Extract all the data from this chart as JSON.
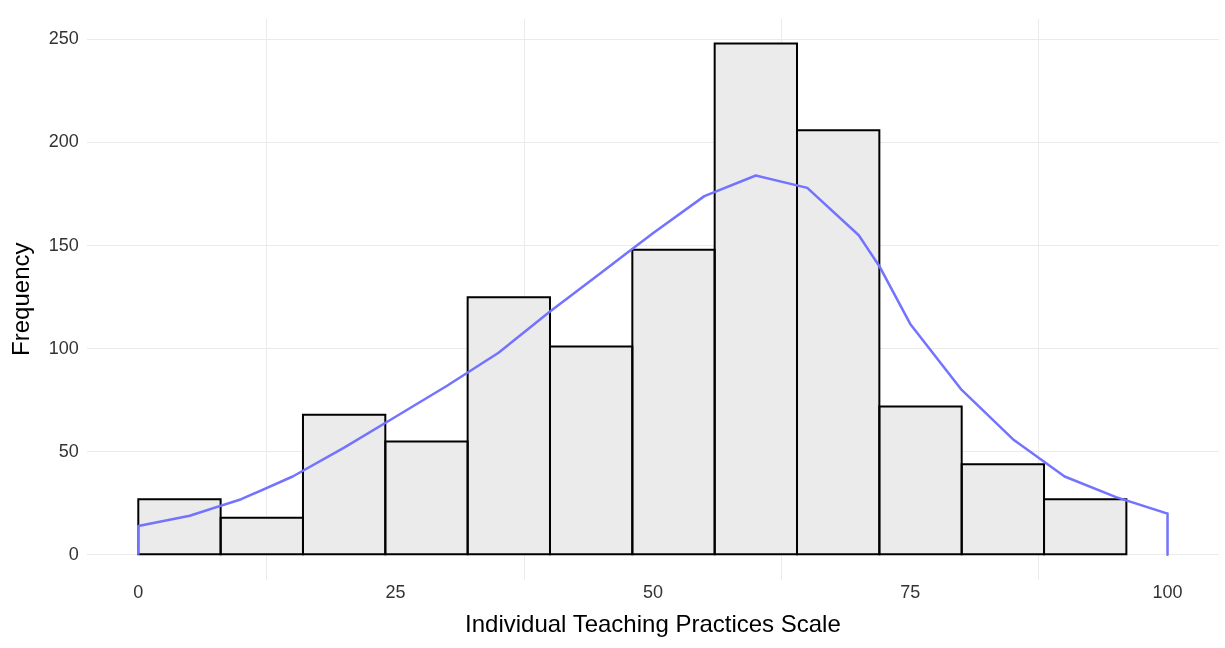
{
  "chart_data": {
    "type": "histogram",
    "xlabel": "Individual Teaching Practices Scale",
    "ylabel": "Frequency",
    "bins": [
      0,
      8,
      16,
      24,
      32,
      40,
      48,
      56,
      64,
      72,
      80,
      88,
      96
    ],
    "series": [
      {
        "color": "#ebebeb",
        "values": [
          27,
          18,
          68,
          55,
          125,
          101,
          148,
          248,
          206,
          72,
          44,
          27
        ]
      },
      {
        "type": "line",
        "color": "#7373ff",
        "x": [
          0,
          0,
          5,
          10,
          15,
          20,
          25,
          30,
          35,
          40,
          45,
          50,
          55,
          60,
          65,
          70,
          72,
          75,
          80,
          85,
          90,
          95,
          100,
          100
        ],
        "values": [
          0,
          14,
          19,
          27,
          38,
          52,
          67,
          82,
          98,
          118,
          137,
          156,
          174,
          184,
          178,
          155,
          140,
          112,
          80,
          56,
          38,
          28,
          20,
          0
        ]
      }
    ],
    "xlim": [
      -5,
      105
    ],
    "xticks": [
      0,
      25,
      50,
      75,
      100
    ],
    "ylim": [
      -12,
      260
    ],
    "yticks": [
      0,
      50,
      100,
      150,
      200,
      250
    ],
    "grid": true,
    "marker": "none",
    "line_style": "solid"
  }
}
